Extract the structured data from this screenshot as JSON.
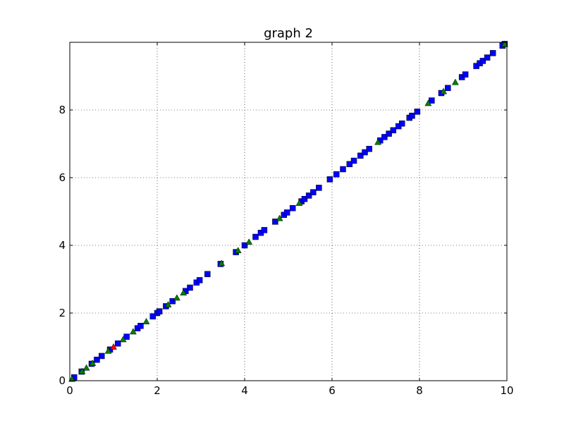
{
  "chart_data": {
    "type": "scatter",
    "title": "graph 2",
    "xlabel": "",
    "ylabel": "",
    "xlim": [
      0,
      10
    ],
    "ylim": [
      0,
      10
    ],
    "x_ticks": [
      0,
      2,
      4,
      6,
      8,
      10
    ],
    "y_ticks": [
      0,
      2,
      4,
      6,
      8
    ],
    "grid": true,
    "series": [
      {
        "marker": "square",
        "color": "#0000ff",
        "points": [
          [
            0.1,
            0.1
          ],
          [
            0.27,
            0.27
          ],
          [
            0.5,
            0.5
          ],
          [
            0.62,
            0.62
          ],
          [
            0.73,
            0.73
          ],
          [
            0.92,
            0.92
          ],
          [
            1.1,
            1.1
          ],
          [
            1.3,
            1.3
          ],
          [
            1.55,
            1.55
          ],
          [
            1.62,
            1.62
          ],
          [
            1.9,
            1.9
          ],
          [
            2.0,
            2.0
          ],
          [
            2.05,
            2.05
          ],
          [
            2.2,
            2.2
          ],
          [
            2.35,
            2.35
          ],
          [
            2.65,
            2.65
          ],
          [
            2.75,
            2.75
          ],
          [
            2.9,
            2.9
          ],
          [
            2.97,
            2.97
          ],
          [
            3.15,
            3.15
          ],
          [
            3.45,
            3.45
          ],
          [
            3.8,
            3.8
          ],
          [
            4.0,
            4.0
          ],
          [
            4.25,
            4.25
          ],
          [
            4.37,
            4.37
          ],
          [
            4.45,
            4.45
          ],
          [
            4.7,
            4.7
          ],
          [
            4.9,
            4.9
          ],
          [
            4.97,
            4.97
          ],
          [
            5.1,
            5.1
          ],
          [
            5.3,
            5.3
          ],
          [
            5.37,
            5.37
          ],
          [
            5.47,
            5.47
          ],
          [
            5.57,
            5.57
          ],
          [
            5.7,
            5.7
          ],
          [
            5.95,
            5.95
          ],
          [
            6.1,
            6.1
          ],
          [
            6.25,
            6.25
          ],
          [
            6.4,
            6.4
          ],
          [
            6.5,
            6.5
          ],
          [
            6.65,
            6.65
          ],
          [
            6.75,
            6.75
          ],
          [
            6.85,
            6.85
          ],
          [
            7.1,
            7.1
          ],
          [
            7.2,
            7.2
          ],
          [
            7.3,
            7.3
          ],
          [
            7.4,
            7.4
          ],
          [
            7.52,
            7.52
          ],
          [
            7.6,
            7.6
          ],
          [
            7.77,
            7.77
          ],
          [
            7.83,
            7.83
          ],
          [
            7.95,
            7.95
          ],
          [
            8.28,
            8.28
          ],
          [
            8.5,
            8.5
          ],
          [
            8.65,
            8.65
          ],
          [
            8.97,
            8.97
          ],
          [
            9.05,
            9.05
          ],
          [
            9.3,
            9.3
          ],
          [
            9.38,
            9.38
          ],
          [
            9.45,
            9.45
          ],
          [
            9.55,
            9.55
          ],
          [
            9.68,
            9.68
          ],
          [
            9.9,
            9.9
          ],
          [
            9.95,
            9.95
          ]
        ]
      },
      {
        "marker": "triangle",
        "color": "#008000",
        "points": [
          [
            0.05,
            0.05
          ],
          [
            0.28,
            0.28
          ],
          [
            0.38,
            0.38
          ],
          [
            0.52,
            0.52
          ],
          [
            0.88,
            0.88
          ],
          [
            1.22,
            1.22
          ],
          [
            1.45,
            1.45
          ],
          [
            1.75,
            1.75
          ],
          [
            2.25,
            2.25
          ],
          [
            2.45,
            2.45
          ],
          [
            2.6,
            2.6
          ],
          [
            3.47,
            3.47
          ],
          [
            3.85,
            3.85
          ],
          [
            4.1,
            4.1
          ],
          [
            4.8,
            4.8
          ],
          [
            5.25,
            5.25
          ],
          [
            7.05,
            7.05
          ],
          [
            8.2,
            8.2
          ],
          [
            8.55,
            8.55
          ],
          [
            8.82,
            8.82
          ],
          [
            9.95,
            9.95
          ]
        ]
      },
      {
        "marker": "triangle",
        "color": "#ff0000",
        "points": [
          [
            1.0,
            1.0
          ]
        ]
      }
    ]
  }
}
